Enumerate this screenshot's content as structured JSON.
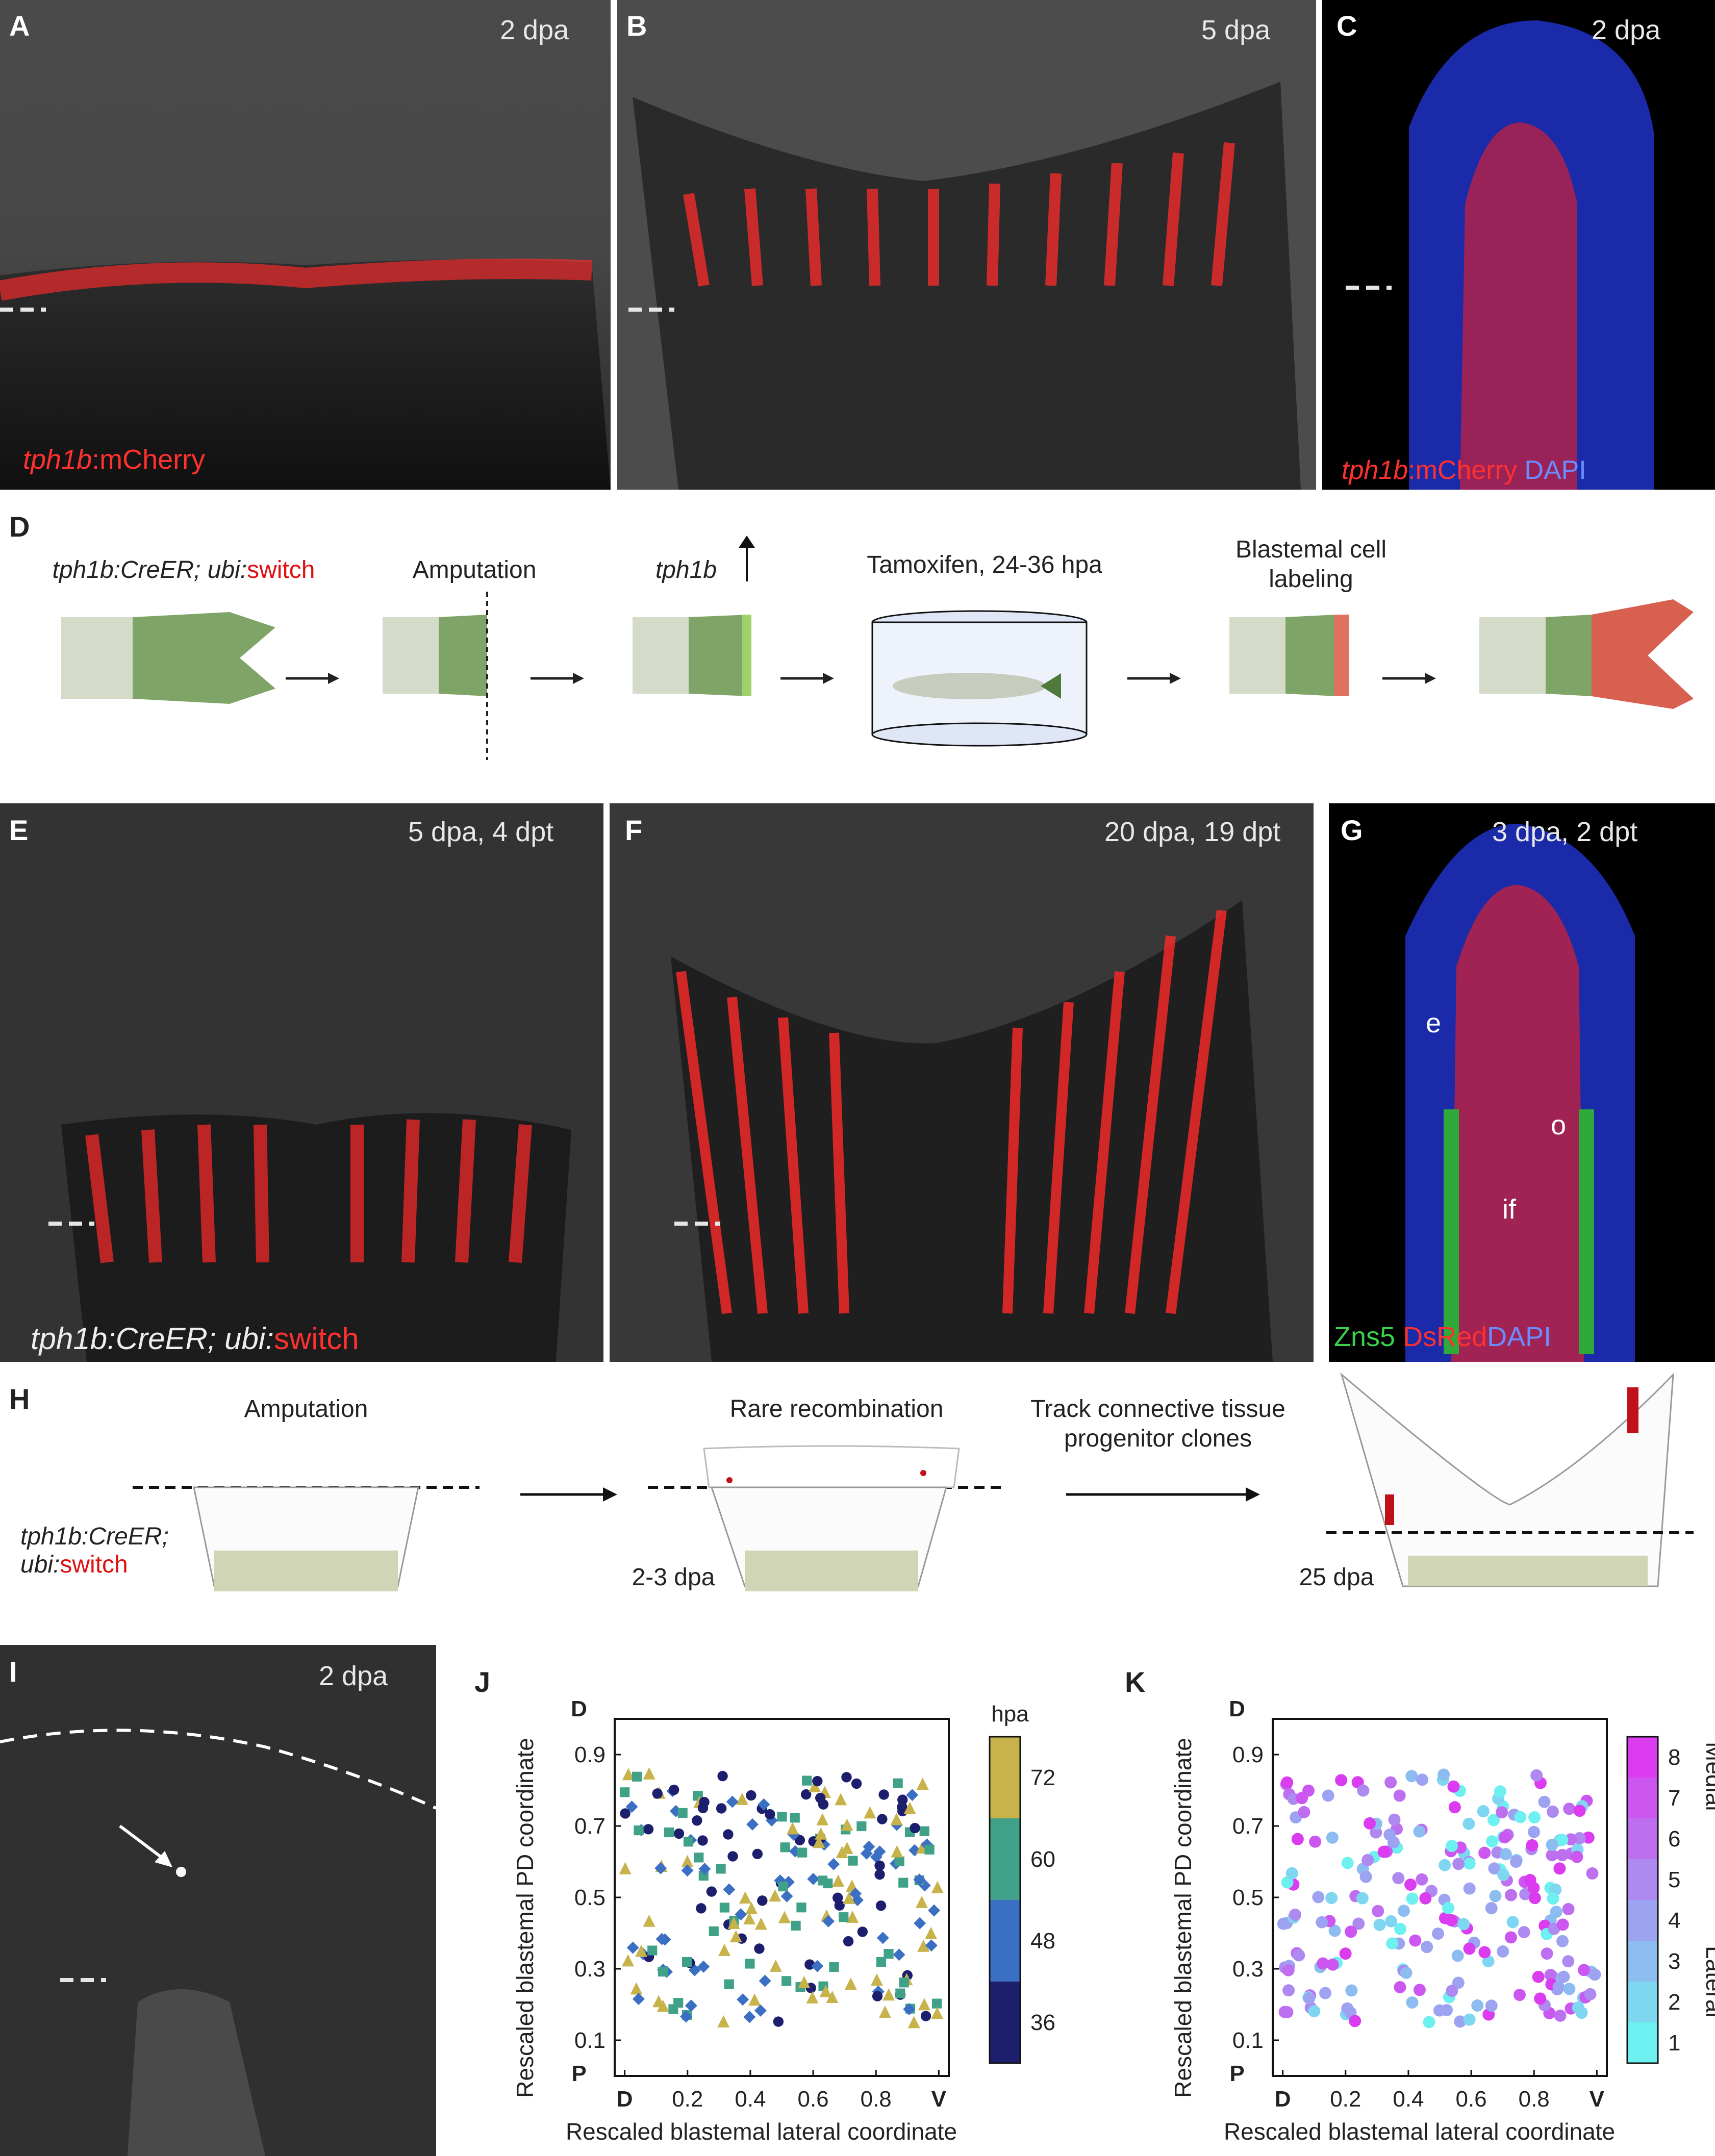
{
  "panels": {
    "A": {
      "label": "A",
      "time": "2 dpa",
      "transgene_italic": "tph1b",
      "transgene_rest": ":mCherry"
    },
    "B": {
      "label": "B",
      "time": "5 dpa"
    },
    "C": {
      "label": "C",
      "time": "2 dpa",
      "transgene_italic": "tph1b",
      "transgene_rest": ":mCherry",
      "stain": "DAPI"
    },
    "D": {
      "label": "D",
      "genotype_italic": "tph1b:CreER; ubi:",
      "genotype_red": "switch",
      "step_amputation": "Amputation",
      "step_gene": "tph1b",
      "step_tamoxifen": "Tamoxifen, 24-36 hpa",
      "step_labeling_1": "Blastemal cell",
      "step_labeling_2": "labeling"
    },
    "E": {
      "label": "E",
      "time": "5 dpa, 4 dpt",
      "genotype_italic": "tph1b:CreER; ubi:",
      "genotype_red": "switch"
    },
    "F": {
      "label": "F",
      "time": "20 dpa, 19 dpt"
    },
    "G": {
      "label": "G",
      "time": "3 dpa, 2 dpt",
      "mark_e": "e",
      "mark_o": "o",
      "mark_if": "if",
      "stain_green": "Zns5",
      "stain_red": "DsRed",
      "stain_blue": "DAPI"
    },
    "H": {
      "label": "H",
      "step1": "Amputation",
      "step2": "Rare recombination",
      "step3_1": "Track connective tissue",
      "step3_2": "progenitor clones",
      "genotype_line1": "tph1b:CreER;",
      "genotype_line2_italic": "ubi:",
      "genotype_line2_red": "switch",
      "time1": "2-3 dpa",
      "time2": "25 dpa"
    },
    "I": {
      "label": "I",
      "time": "2 dpa"
    },
    "J": {
      "label": "J",
      "colorbar_title": "hpa",
      "colorbar_ticks": [
        "72",
        "60",
        "48",
        "36"
      ]
    },
    "K": {
      "label": "K",
      "colorbar_ticks": [
        "8",
        "7",
        "6",
        "5",
        "4",
        "3",
        "2",
        "1"
      ],
      "colorbar_top": "Medial",
      "colorbar_bottom": "Lateral"
    }
  },
  "chart_data": [
    {
      "panel": "J",
      "type": "scatter",
      "xlabel": "Rescaled blastemal lateral coordinate",
      "ylabel": "Rescaled blastemal PD coordinate",
      "x_ticks": [
        "D",
        "0.2",
        "0.4",
        "0.6",
        "0.8",
        "V"
      ],
      "y_ticks": [
        "0.1",
        "0.3",
        "0.5",
        "0.7",
        "0.9"
      ],
      "y_end_labels": [
        "D",
        "P"
      ],
      "xlim": [
        0,
        1
      ],
      "ylim": [
        0,
        1
      ],
      "colorbar": {
        "title": "hpa",
        "ticks": [
          "72",
          "60",
          "48",
          "36"
        ]
      },
      "series": [
        {
          "name": "72",
          "color": "#c8b24a",
          "marker": "triangle"
        },
        {
          "name": "60",
          "color": "#3fa187",
          "marker": "square"
        },
        {
          "name": "48",
          "color": "#3b6fc4",
          "marker": "diamond"
        },
        {
          "name": "36",
          "color": "#1d1f6e",
          "marker": "circle"
        }
      ]
    },
    {
      "panel": "K",
      "type": "scatter",
      "xlabel": "Rescaled blastemal lateral coordinate",
      "ylabel": "Rescaled blastemal PD coordinate",
      "x_ticks": [
        "D",
        "0.2",
        "0.4",
        "0.6",
        "0.8",
        "V"
      ],
      "y_ticks": [
        "0.1",
        "0.3",
        "0.5",
        "0.7",
        "0.9"
      ],
      "y_end_labels": [
        "D",
        "P"
      ],
      "xlim": [
        0,
        1
      ],
      "ylim": [
        0,
        1
      ],
      "colorbar": {
        "ticks": [
          "8",
          "7",
          "6",
          "5",
          "4",
          "3",
          "2",
          "1"
        ],
        "top_label": "Medial",
        "bottom_label": "Lateral"
      }
    }
  ]
}
